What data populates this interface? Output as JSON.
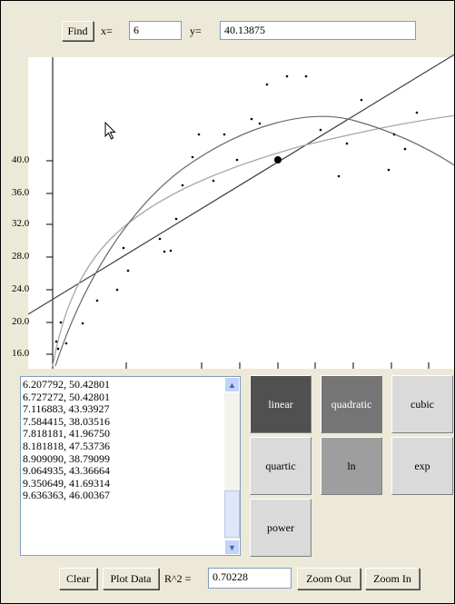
{
  "toolbar": {
    "find_label": "Find",
    "x_label": "x=",
    "x_value": "6",
    "y_label": "y=",
    "y_value": "40.13875"
  },
  "graph": {
    "y_ticks": [
      "40.0",
      "36.0",
      "32.0",
      "28.0",
      "24.0",
      "20.0",
      "16.0"
    ],
    "found_point": {
      "x": 6,
      "y": 40.13875
    }
  },
  "data_list": {
    "rows": [
      "6.207792, 50.42801",
      "6.727272, 50.42801",
      "7.116883, 43.93927",
      "7.584415, 38.03516",
      "7.818181, 41.96750",
      "8.181818, 47.53736",
      "8.909090, 38.79099",
      "9.064935, 43.36664",
      "9.350649, 41.69314",
      "9.636363, 46.00367"
    ]
  },
  "fit_buttons": [
    {
      "label": "linear",
      "color": "#505050",
      "text_color": "#ffffff"
    },
    {
      "label": "quadratic",
      "color": "#757575",
      "text_color": "#ffffff"
    },
    {
      "label": "cubic",
      "color": "#dadada",
      "text_color": "#000000"
    },
    {
      "label": "quartic",
      "color": "#dadada",
      "text_color": "#000000"
    },
    {
      "label": "ln",
      "color": "#9e9e9e",
      "text_color": "#000000"
    },
    {
      "label": "exp",
      "color": "#dadada",
      "text_color": "#000000"
    },
    {
      "label": "power",
      "color": "#dadada",
      "text_color": "#000000"
    }
  ],
  "bottom": {
    "clear_label": "Clear",
    "plot_label": "Plot Data",
    "r2_label": "R^2 =",
    "r2_value": "0.70228",
    "zoom_out_label": "Zoom Out",
    "zoom_in_label": "Zoom In"
  },
  "icons": {
    "cursor": "arrow-cursor-icon",
    "scroll_up": "chevron-up-icon",
    "scroll_down": "chevron-down-icon"
  }
}
